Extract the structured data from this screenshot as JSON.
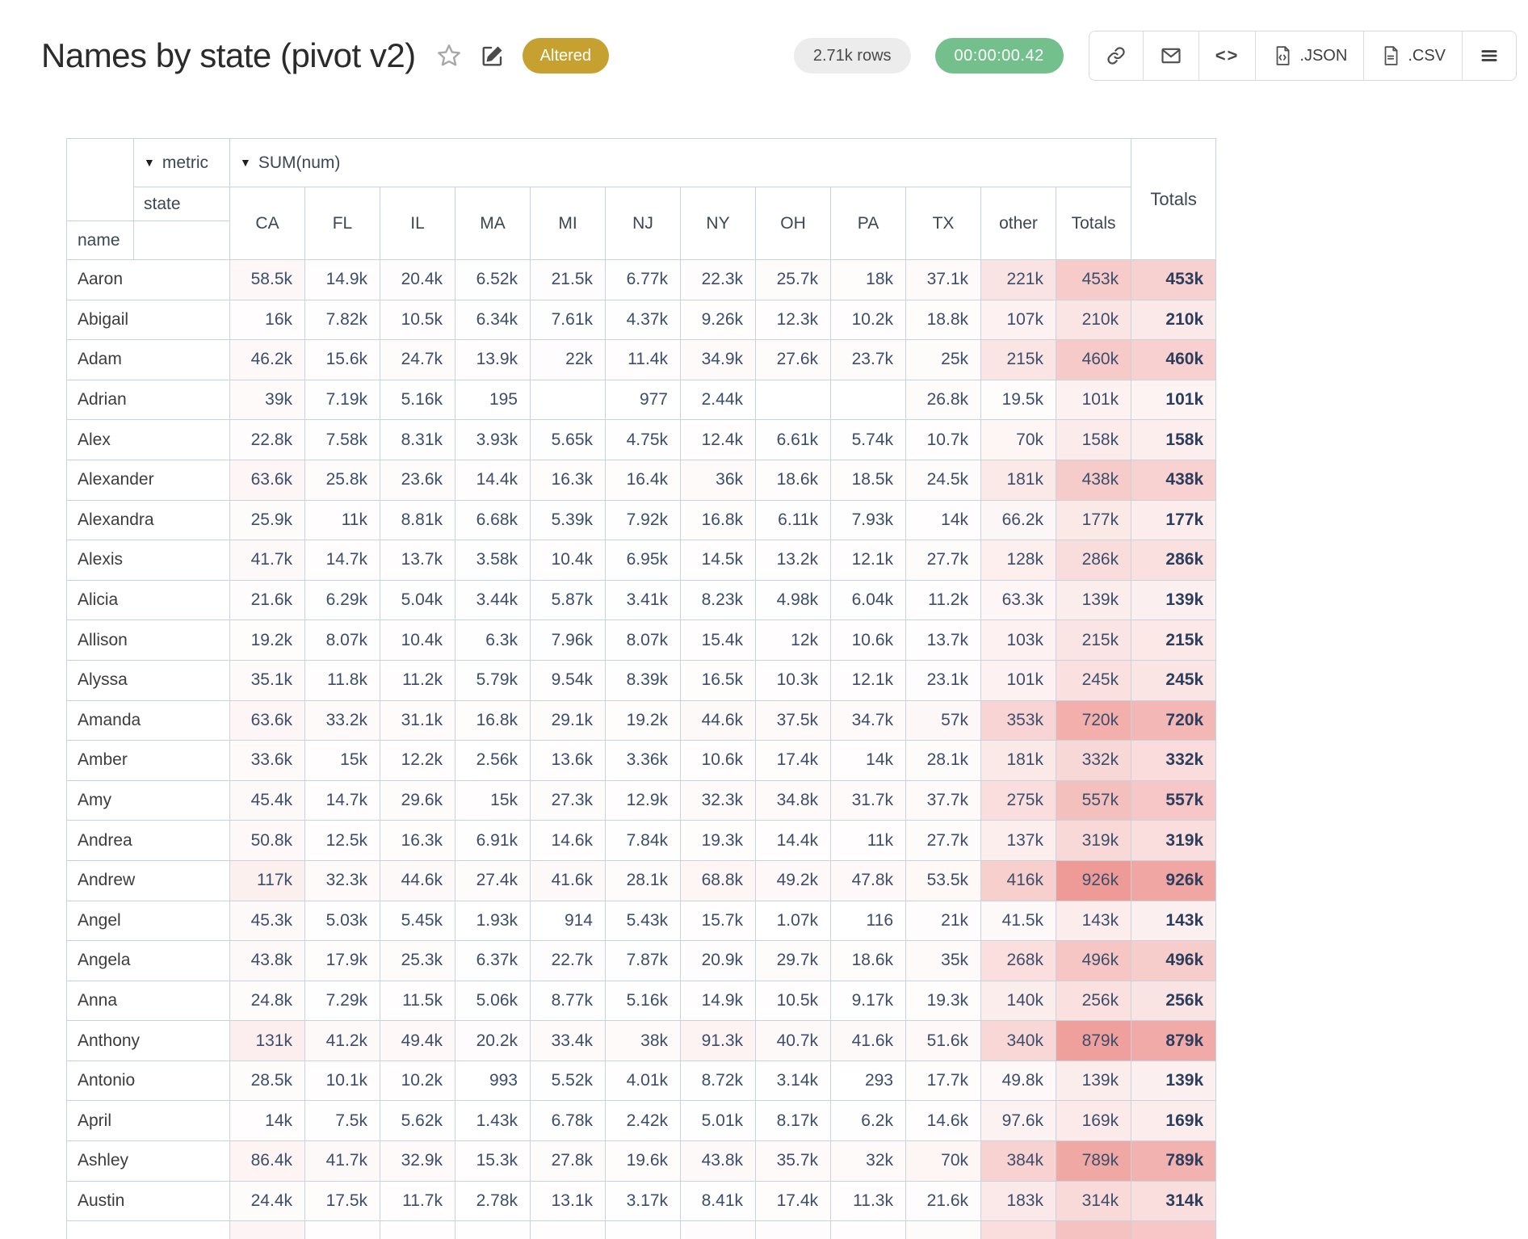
{
  "page": {
    "title": "Names by state (pivot v2)",
    "altered_badge": "Altered",
    "rows_badge": "2.71k rows",
    "timer_badge": "00:00:00.42"
  },
  "toolbar": {
    "json_label": ".JSON",
    "csv_label": ".CSV",
    "code_glyph": "<>"
  },
  "table": {
    "dropdown_glyph": "▼",
    "metric_label": "metric",
    "sum_label": "SUM(num)",
    "state_label": "state",
    "name_label": "name",
    "totals_label": "Totals",
    "columns": [
      "CA",
      "FL",
      "IL",
      "MA",
      "MI",
      "NJ",
      "NY",
      "OH",
      "PA",
      "TX",
      "other",
      "Totals"
    ],
    "rows": [
      {
        "name": "Aaron",
        "values": [
          "58.5k",
          "14.9k",
          "20.4k",
          "6.52k",
          "21.5k",
          "6.77k",
          "22.3k",
          "25.7k",
          "18k",
          "37.1k",
          "221k",
          "453k"
        ],
        "total": "453k"
      },
      {
        "name": "Abigail",
        "values": [
          "16k",
          "7.82k",
          "10.5k",
          "6.34k",
          "7.61k",
          "4.37k",
          "9.26k",
          "12.3k",
          "10.2k",
          "18.8k",
          "107k",
          "210k"
        ],
        "total": "210k"
      },
      {
        "name": "Adam",
        "values": [
          "46.2k",
          "15.6k",
          "24.7k",
          "13.9k",
          "22k",
          "11.4k",
          "34.9k",
          "27.6k",
          "23.7k",
          "25k",
          "215k",
          "460k"
        ],
        "total": "460k"
      },
      {
        "name": "Adrian",
        "values": [
          "39k",
          "7.19k",
          "5.16k",
          "195",
          "",
          "977",
          "2.44k",
          "",
          "",
          "26.8k",
          "19.5k",
          "101k"
        ],
        "total": "101k"
      },
      {
        "name": "Alex",
        "values": [
          "22.8k",
          "7.58k",
          "8.31k",
          "3.93k",
          "5.65k",
          "4.75k",
          "12.4k",
          "6.61k",
          "5.74k",
          "10.7k",
          "70k",
          "158k"
        ],
        "total": "158k"
      },
      {
        "name": "Alexander",
        "values": [
          "63.6k",
          "25.8k",
          "23.6k",
          "14.4k",
          "16.3k",
          "16.4k",
          "36k",
          "18.6k",
          "18.5k",
          "24.5k",
          "181k",
          "438k"
        ],
        "total": "438k"
      },
      {
        "name": "Alexandra",
        "values": [
          "25.9k",
          "11k",
          "8.81k",
          "6.68k",
          "5.39k",
          "7.92k",
          "16.8k",
          "6.11k",
          "7.93k",
          "14k",
          "66.2k",
          "177k"
        ],
        "total": "177k"
      },
      {
        "name": "Alexis",
        "values": [
          "41.7k",
          "14.7k",
          "13.7k",
          "3.58k",
          "10.4k",
          "6.95k",
          "14.5k",
          "13.2k",
          "12.1k",
          "27.7k",
          "128k",
          "286k"
        ],
        "total": "286k"
      },
      {
        "name": "Alicia",
        "values": [
          "21.6k",
          "6.29k",
          "5.04k",
          "3.44k",
          "5.87k",
          "3.41k",
          "8.23k",
          "4.98k",
          "6.04k",
          "11.2k",
          "63.3k",
          "139k"
        ],
        "total": "139k"
      },
      {
        "name": "Allison",
        "values": [
          "19.2k",
          "8.07k",
          "10.4k",
          "6.3k",
          "7.96k",
          "8.07k",
          "15.4k",
          "12k",
          "10.6k",
          "13.7k",
          "103k",
          "215k"
        ],
        "total": "215k"
      },
      {
        "name": "Alyssa",
        "values": [
          "35.1k",
          "11.8k",
          "11.2k",
          "5.79k",
          "9.54k",
          "8.39k",
          "16.5k",
          "10.3k",
          "12.1k",
          "23.1k",
          "101k",
          "245k"
        ],
        "total": "245k"
      },
      {
        "name": "Amanda",
        "values": [
          "63.6k",
          "33.2k",
          "31.1k",
          "16.8k",
          "29.1k",
          "19.2k",
          "44.6k",
          "37.5k",
          "34.7k",
          "57k",
          "353k",
          "720k"
        ],
        "total": "720k"
      },
      {
        "name": "Amber",
        "values": [
          "33.6k",
          "15k",
          "12.2k",
          "2.56k",
          "13.6k",
          "3.36k",
          "10.6k",
          "17.4k",
          "14k",
          "28.1k",
          "181k",
          "332k"
        ],
        "total": "332k"
      },
      {
        "name": "Amy",
        "values": [
          "45.4k",
          "14.7k",
          "29.6k",
          "15k",
          "27.3k",
          "12.9k",
          "32.3k",
          "34.8k",
          "31.7k",
          "37.7k",
          "275k",
          "557k"
        ],
        "total": "557k"
      },
      {
        "name": "Andrea",
        "values": [
          "50.8k",
          "12.5k",
          "16.3k",
          "6.91k",
          "14.6k",
          "7.84k",
          "19.3k",
          "14.4k",
          "11k",
          "27.7k",
          "137k",
          "319k"
        ],
        "total": "319k"
      },
      {
        "name": "Andrew",
        "values": [
          "117k",
          "32.3k",
          "44.6k",
          "27.4k",
          "41.6k",
          "28.1k",
          "68.8k",
          "49.2k",
          "47.8k",
          "53.5k",
          "416k",
          "926k"
        ],
        "total": "926k"
      },
      {
        "name": "Angel",
        "values": [
          "45.3k",
          "5.03k",
          "5.45k",
          "1.93k",
          "914",
          "5.43k",
          "15.7k",
          "1.07k",
          "116",
          "21k",
          "41.5k",
          "143k"
        ],
        "total": "143k"
      },
      {
        "name": "Angela",
        "values": [
          "43.8k",
          "17.9k",
          "25.3k",
          "6.37k",
          "22.7k",
          "7.87k",
          "20.9k",
          "29.7k",
          "18.6k",
          "35k",
          "268k",
          "496k"
        ],
        "total": "496k"
      },
      {
        "name": "Anna",
        "values": [
          "24.8k",
          "7.29k",
          "11.5k",
          "5.06k",
          "8.77k",
          "5.16k",
          "14.9k",
          "10.5k",
          "9.17k",
          "19.3k",
          "140k",
          "256k"
        ],
        "total": "256k"
      },
      {
        "name": "Anthony",
        "values": [
          "131k",
          "41.2k",
          "49.4k",
          "20.2k",
          "33.4k",
          "38k",
          "91.3k",
          "40.7k",
          "41.6k",
          "51.6k",
          "340k",
          "879k"
        ],
        "total": "879k"
      },
      {
        "name": "Antonio",
        "values": [
          "28.5k",
          "10.1k",
          "10.2k",
          "993",
          "5.52k",
          "4.01k",
          "8.72k",
          "3.14k",
          "293",
          "17.7k",
          "49.8k",
          "139k"
        ],
        "total": "139k"
      },
      {
        "name": "April",
        "values": [
          "14k",
          "7.5k",
          "5.62k",
          "1.43k",
          "6.78k",
          "2.42k",
          "5.01k",
          "8.17k",
          "6.2k",
          "14.6k",
          "97.6k",
          "169k"
        ],
        "total": "169k"
      },
      {
        "name": "Ashley",
        "values": [
          "86.4k",
          "41.7k",
          "32.9k",
          "15.3k",
          "27.8k",
          "19.6k",
          "43.8k",
          "35.7k",
          "32k",
          "70k",
          "384k",
          "789k"
        ],
        "total": "789k"
      },
      {
        "name": "Austin",
        "values": [
          "24.4k",
          "17.5k",
          "11.7k",
          "2.78k",
          "13.1k",
          "3.17k",
          "8.41k",
          "17.4k",
          "11.3k",
          "21.6k",
          "183k",
          "314k"
        ],
        "total": "314k"
      }
    ],
    "partial_row_tints": [
      0.1,
      0.02,
      0.02,
      0.01,
      0.02,
      0.01,
      0.03,
      0.03,
      0.02,
      0.04,
      0.33,
      0.6
    ],
    "partial_total_tint": 0.55
  },
  "colors": {
    "heat_strong": "#ee9a97",
    "border": "#c9d3de",
    "altered_bg": "#c6a12f",
    "timer_bg": "#74c08c",
    "rows_pill_bg": "#ececec"
  }
}
